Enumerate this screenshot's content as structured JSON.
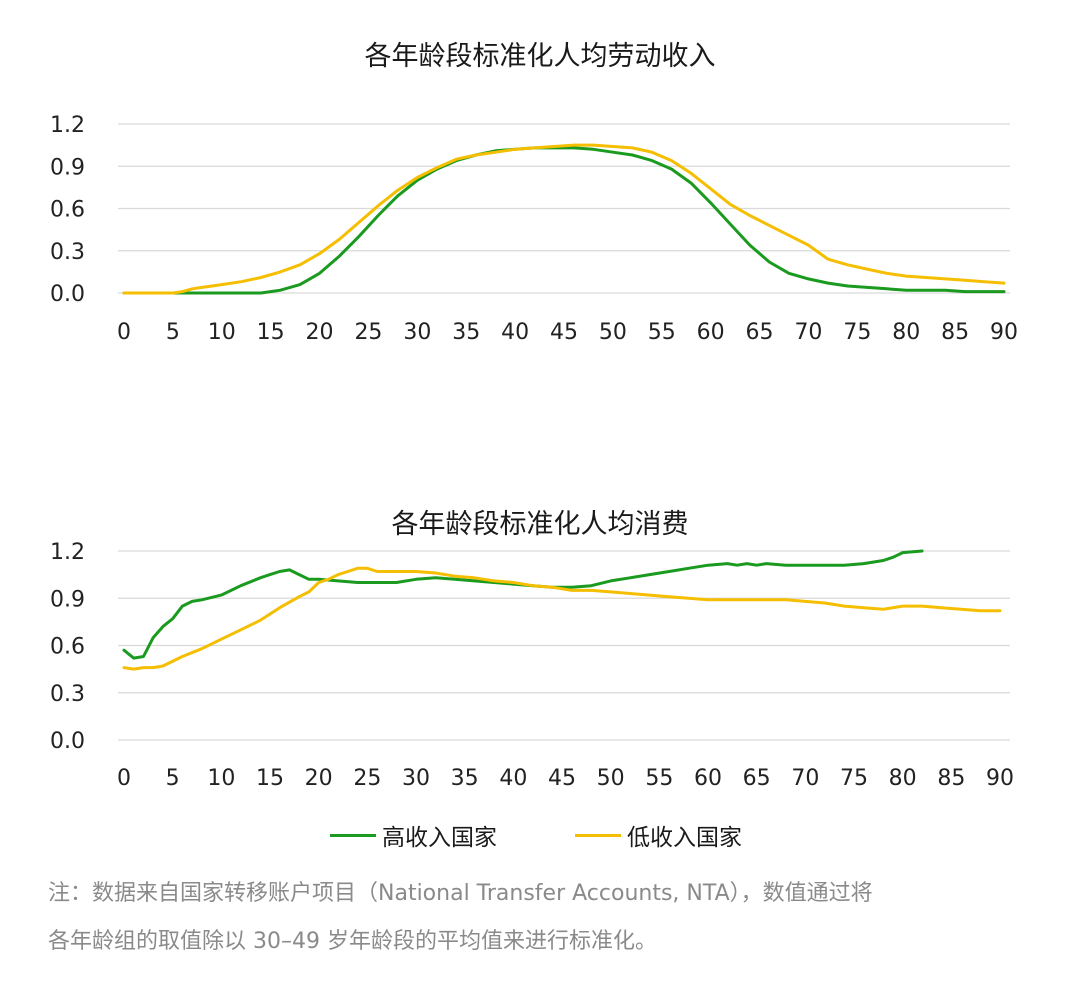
{
  "colors": {
    "high": "#1a9a1f",
    "low": "#f5be00",
    "grid": "#d9d9d9"
  },
  "legend": {
    "high": "高收入国家",
    "low": "低收入国家"
  },
  "note": {
    "line1": "注：数据来自国家转移账户项目（National Transfer Accounts, NTA），数值通过将",
    "line2": "各年龄组的取值除以 30–49 岁年龄段的平均值来进行标准化。"
  },
  "chart_data": [
    {
      "type": "line",
      "title": "各年龄段标准化人均劳动收入",
      "xlabel": "",
      "ylabel": "",
      "xlim": [
        0,
        90
      ],
      "ylim": [
        0,
        1.2
      ],
      "xticks": [
        "0",
        "5",
        "10",
        "15",
        "20",
        "25",
        "30",
        "35",
        "40",
        "45",
        "50",
        "55",
        "60",
        "65",
        "70",
        "75",
        "80",
        "85",
        "90"
      ],
      "yticks": [
        "0.0",
        "0.3",
        "0.6",
        "0.9",
        "1.2"
      ],
      "grid": true,
      "series": [
        {
          "name": "高收入国家",
          "color_key": "high",
          "x": [
            0,
            5,
            6,
            8,
            10,
            12,
            14,
            15,
            16,
            18,
            20,
            22,
            24,
            26,
            28,
            30,
            32,
            34,
            36,
            38,
            40,
            42,
            44,
            46,
            48,
            50,
            52,
            54,
            56,
            58,
            60,
            62,
            64,
            66,
            68,
            70,
            72,
            74,
            76,
            78,
            80,
            82,
            84,
            86,
            88,
            90
          ],
          "y": [
            0,
            0,
            0,
            0,
            0,
            0,
            0,
            0.01,
            0.02,
            0.06,
            0.14,
            0.26,
            0.4,
            0.55,
            0.69,
            0.8,
            0.88,
            0.94,
            0.98,
            1.01,
            1.02,
            1.03,
            1.03,
            1.03,
            1.02,
            1.0,
            0.98,
            0.94,
            0.88,
            0.78,
            0.64,
            0.49,
            0.34,
            0.22,
            0.14,
            0.1,
            0.07,
            0.05,
            0.04,
            0.03,
            0.02,
            0.02,
            0.02,
            0.01,
            0.01,
            0.01
          ]
        },
        {
          "name": "低收入国家",
          "color_key": "low",
          "x": [
            0,
            5,
            6,
            7,
            8,
            10,
            12,
            14,
            16,
            18,
            20,
            22,
            24,
            26,
            28,
            30,
            32,
            34,
            36,
            38,
            40,
            42,
            44,
            46,
            48,
            50,
            52,
            54,
            56,
            58,
            60,
            62,
            64,
            66,
            68,
            70,
            72,
            74,
            76,
            78,
            80,
            82,
            84,
            86,
            88,
            90
          ],
          "y": [
            0,
            0,
            0.01,
            0.03,
            0.04,
            0.06,
            0.08,
            0.11,
            0.15,
            0.2,
            0.28,
            0.38,
            0.5,
            0.62,
            0.73,
            0.82,
            0.89,
            0.95,
            0.98,
            1.0,
            1.02,
            1.03,
            1.04,
            1.05,
            1.05,
            1.04,
            1.03,
            1.0,
            0.94,
            0.85,
            0.74,
            0.63,
            0.55,
            0.48,
            0.41,
            0.34,
            0.24,
            0.2,
            0.17,
            0.14,
            0.12,
            0.11,
            0.1,
            0.09,
            0.08,
            0.07
          ]
        }
      ]
    },
    {
      "type": "line",
      "title": "各年龄段标准化人均消费",
      "xlabel": "",
      "ylabel": "",
      "xlim": [
        0,
        90
      ],
      "ylim": [
        0,
        1.2
      ],
      "xticks": [
        "0",
        "5",
        "10",
        "15",
        "20",
        "25",
        "30",
        "35",
        "40",
        "45",
        "50",
        "55",
        "60",
        "65",
        "70",
        "75",
        "80",
        "85",
        "90"
      ],
      "yticks": [
        "0.0",
        "0.3",
        "0.6",
        "0.9",
        "1.2"
      ],
      "grid": true,
      "series": [
        {
          "name": "高收入国家",
          "color_key": "high",
          "x": [
            0,
            1,
            2,
            3,
            4,
            5,
            6,
            7,
            8,
            10,
            12,
            14,
            15,
            16,
            17,
            18,
            19,
            20,
            22,
            24,
            26,
            28,
            30,
            32,
            34,
            36,
            38,
            40,
            42,
            44,
            46,
            48,
            50,
            52,
            54,
            56,
            58,
            60,
            62,
            63,
            64,
            65,
            66,
            68,
            70,
            72,
            74,
            76,
            78,
            79,
            80,
            82
          ],
          "y": [
            0.57,
            0.52,
            0.53,
            0.65,
            0.72,
            0.77,
            0.85,
            0.88,
            0.89,
            0.92,
            0.98,
            1.03,
            1.05,
            1.07,
            1.08,
            1.05,
            1.02,
            1.02,
            1.01,
            1.0,
            1.0,
            1.0,
            1.02,
            1.03,
            1.02,
            1.01,
            1.0,
            0.99,
            0.98,
            0.97,
            0.97,
            0.98,
            1.01,
            1.03,
            1.05,
            1.07,
            1.09,
            1.11,
            1.12,
            1.11,
            1.12,
            1.11,
            1.12,
            1.11,
            1.11,
            1.11,
            1.11,
            1.12,
            1.14,
            1.16,
            1.19,
            1.2
          ]
        },
        {
          "name": "低收入国家",
          "color_key": "low",
          "x": [
            0,
            1,
            2,
            3,
            4,
            6,
            8,
            10,
            12,
            14,
            16,
            18,
            19,
            20,
            21,
            22,
            23,
            24,
            25,
            26,
            28,
            30,
            32,
            34,
            36,
            38,
            40,
            42,
            44,
            46,
            48,
            50,
            52,
            54,
            56,
            58,
            60,
            62,
            64,
            66,
            68,
            70,
            72,
            74,
            76,
            78,
            80,
            82,
            84,
            86,
            88,
            90
          ],
          "y": [
            0.46,
            0.45,
            0.46,
            0.46,
            0.47,
            0.53,
            0.58,
            0.64,
            0.7,
            0.76,
            0.84,
            0.91,
            0.94,
            1.0,
            1.02,
            1.05,
            1.07,
            1.09,
            1.09,
            1.07,
            1.07,
            1.07,
            1.06,
            1.04,
            1.03,
            1.01,
            1.0,
            0.98,
            0.97,
            0.95,
            0.95,
            0.94,
            0.93,
            0.92,
            0.91,
            0.9,
            0.89,
            0.89,
            0.89,
            0.89,
            0.89,
            0.88,
            0.87,
            0.85,
            0.84,
            0.83,
            0.85,
            0.85,
            0.84,
            0.83,
            0.82,
            0.82
          ]
        }
      ]
    }
  ]
}
